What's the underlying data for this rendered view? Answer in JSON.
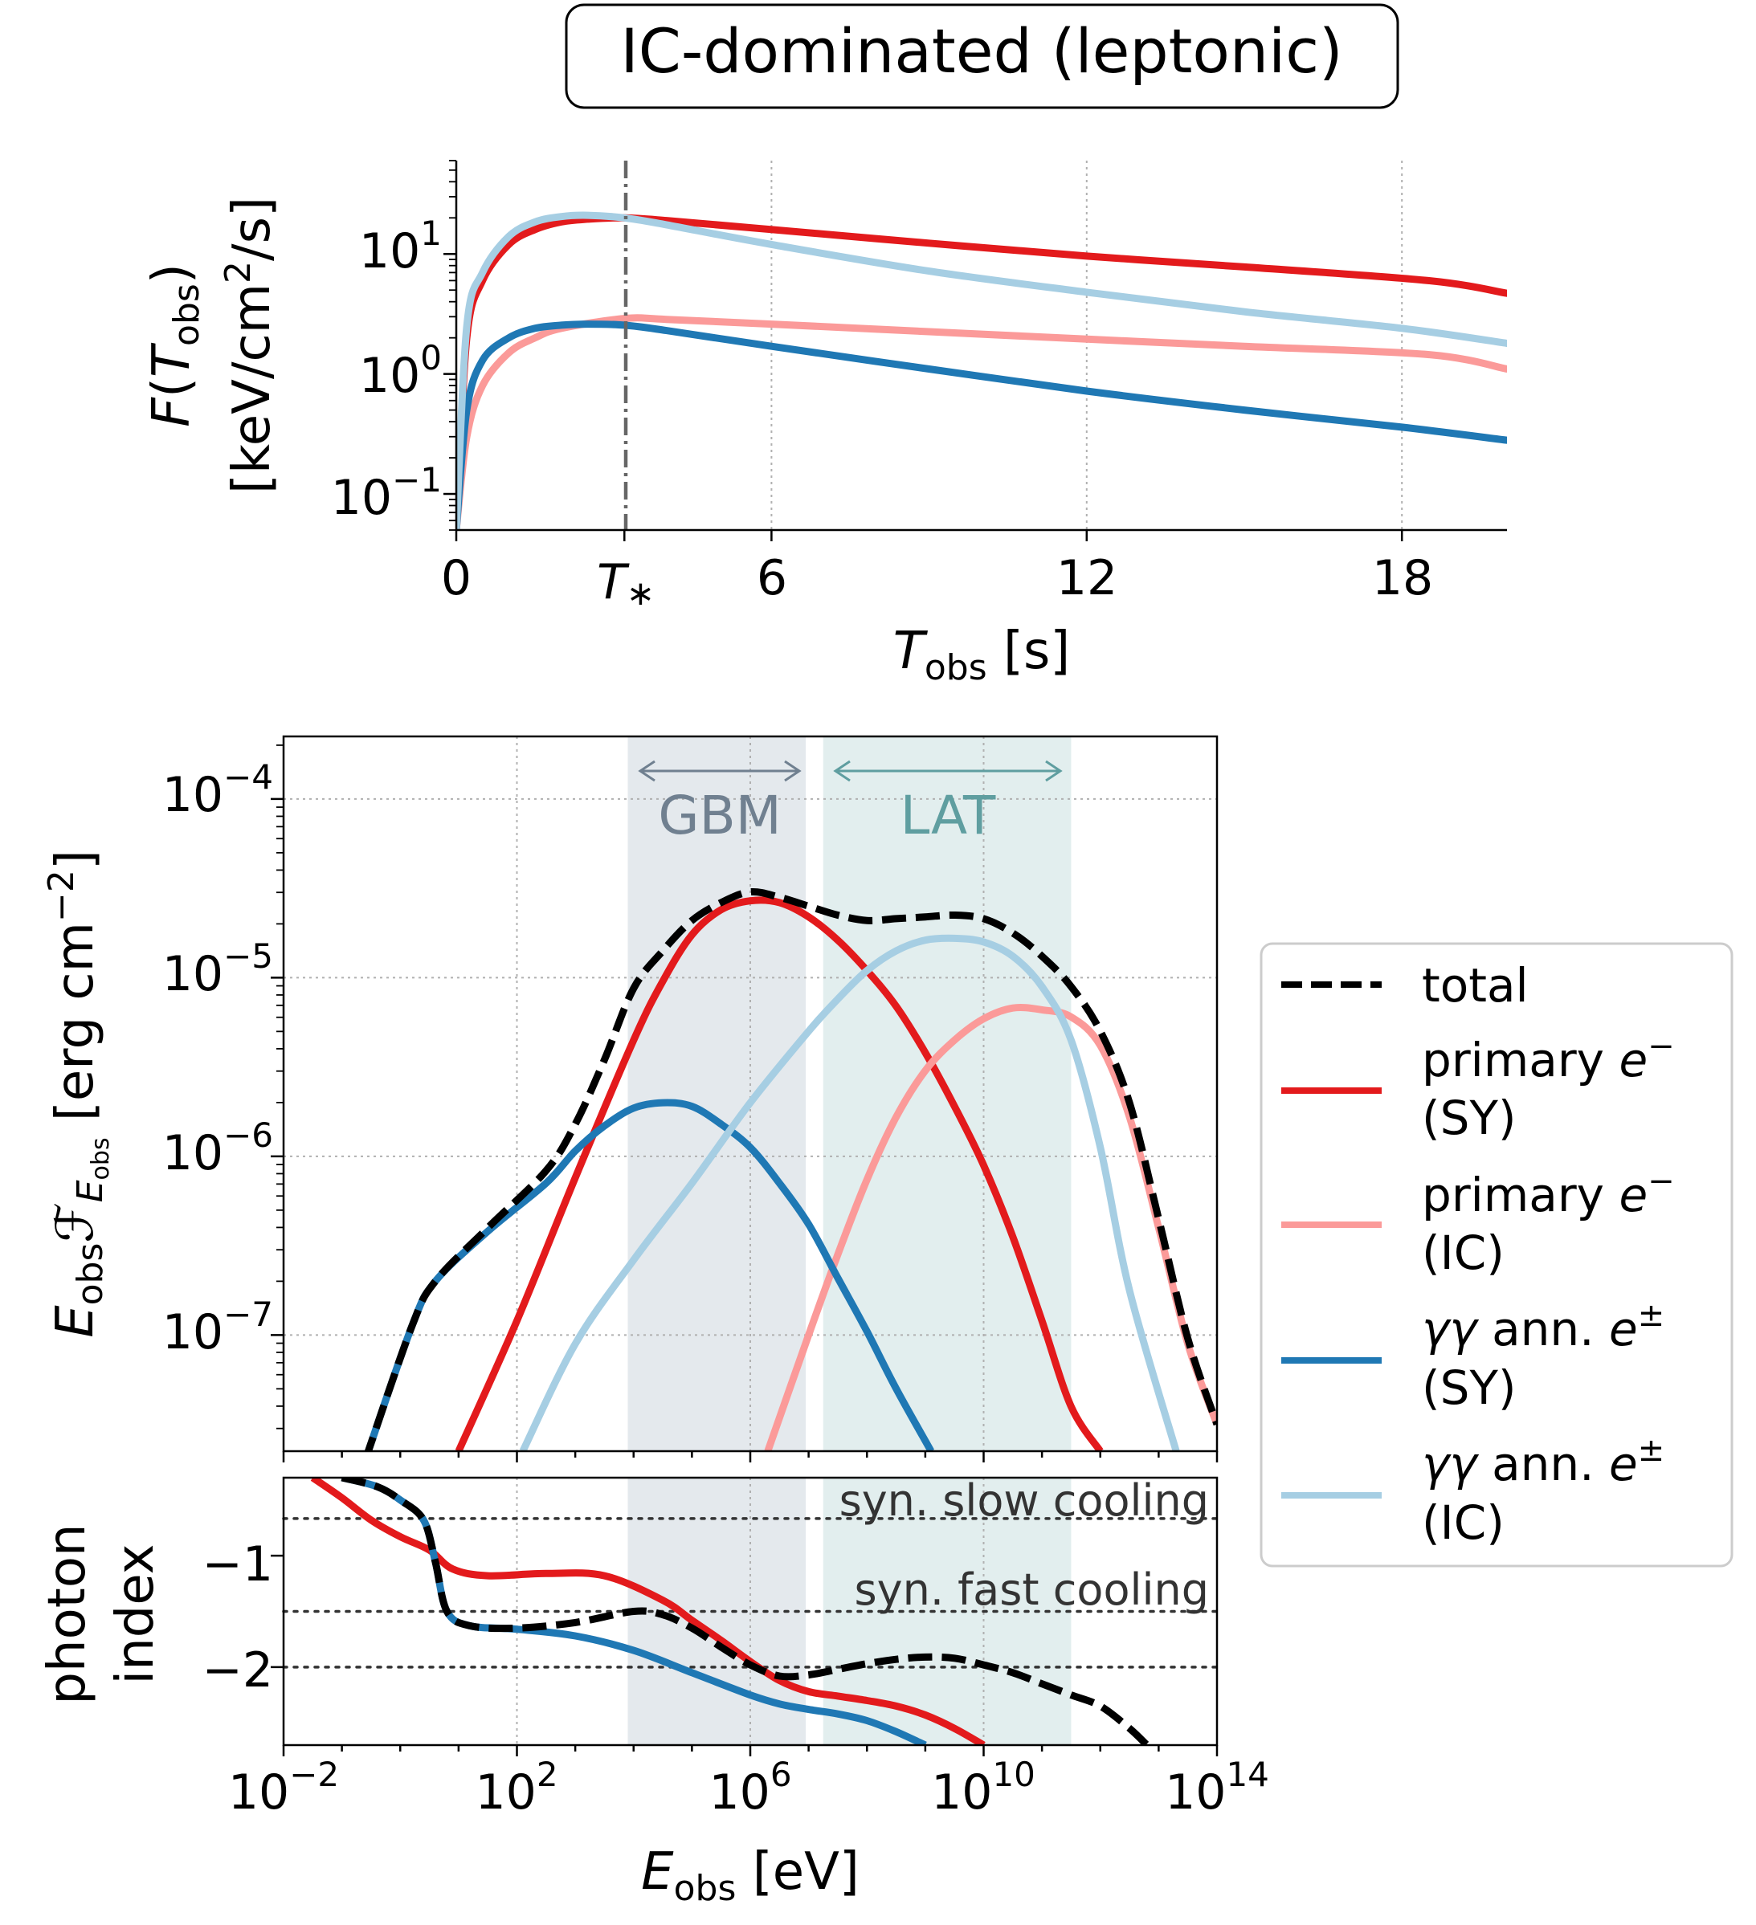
{
  "title": "IC-dominated (leptonic)",
  "colors": {
    "primary_sy": "#e31a1c",
    "primary_ic": "#fb9a99",
    "pair_sy": "#1f78b4",
    "pair_ic": "#a6cee3",
    "total": "#000000",
    "gbm_band": "#d8e0e6",
    "lat_band": "#d5e7e7",
    "gbm_text": "#708090",
    "lat_text": "#5f9ea0"
  },
  "top_panel": {
    "ylabel_line1": "F(T_obs)",
    "ylabel_line2": "[keV/cm²/s]",
    "xlabel": "T_obs [s]",
    "x_tick_labels": [
      "0",
      "T*",
      "6",
      "12",
      "18"
    ],
    "y_tick_labels": [
      "10^1",
      "10^0",
      "10^-1"
    ],
    "t_star": 3.2
  },
  "spectrum_panel": {
    "ylabel": "E_obs F_E_obs [erg cm^-2]",
    "y_tick_labels": [
      "10^-4",
      "10^-5",
      "10^-6",
      "10^-7"
    ],
    "band_labels": {
      "gbm": "GBM",
      "lat": "LAT"
    }
  },
  "index_panel": {
    "ylabel_line1": "photon",
    "ylabel_line2": "index",
    "y_tick_labels": [
      "-1",
      "-2"
    ],
    "reference_labels": {
      "slow": "syn. slow cooling",
      "fast": "syn. fast cooling"
    },
    "xlabel": "E_obs [eV]",
    "x_tick_labels": [
      "10^-2",
      "10^2",
      "10^6",
      "10^10",
      "10^14"
    ]
  },
  "legend": {
    "entries": [
      {
        "key": "total",
        "line1": "total",
        "line2": ""
      },
      {
        "key": "primary_sy",
        "line1": "primary e⁻",
        "line2": "(SY)"
      },
      {
        "key": "primary_ic",
        "line1": "primary e⁻",
        "line2": "(IC)"
      },
      {
        "key": "pair_sy",
        "line1": "γγ ann. e±",
        "line2": "(SY)"
      },
      {
        "key": "pair_ic",
        "line1": "γγ ann. e±",
        "line2": "(IC)"
      }
    ]
  },
  "chart_data": [
    {
      "type": "line",
      "xlabel": "T_obs [s]",
      "ylabel": "F(T_obs) [keV/cm²/s]",
      "xlim": [
        0,
        20
      ],
      "ylim": [
        0.05,
        60
      ],
      "yscale": "log",
      "grid": "x dotted",
      "x_ticks": [
        0,
        3.2,
        6,
        12,
        18
      ],
      "vline": {
        "x": 3.2,
        "style": "dash-dot"
      },
      "series": [
        {
          "key": "primary_sy",
          "x": [
            0,
            0.2,
            0.5,
            1,
            1.5,
            2,
            2.5,
            3.2,
            4,
            6,
            9,
            12,
            15,
            18.5,
            20
          ],
          "y": [
            0.05,
            2,
            6,
            12,
            16,
            18.5,
            19.5,
            20,
            19,
            16,
            12.3,
            9.6,
            7.8,
            6,
            4.7
          ]
        },
        {
          "key": "primary_ic",
          "x": [
            0,
            0.2,
            0.5,
            1,
            1.5,
            2,
            3.2,
            4,
            6,
            9,
            12,
            15,
            18.5,
            20
          ],
          "y": [
            0.05,
            0.3,
            0.8,
            1.5,
            2,
            2.4,
            2.9,
            2.85,
            2.6,
            2.25,
            1.95,
            1.7,
            1.45,
            1.1
          ]
        },
        {
          "key": "pair_sy",
          "x": [
            0,
            0.2,
            0.5,
            1,
            1.5,
            2,
            2.5,
            3.2,
            4,
            6,
            9,
            12,
            15,
            18,
            20
          ],
          "y": [
            0.05,
            0.5,
            1.3,
            2,
            2.4,
            2.55,
            2.6,
            2.55,
            2.3,
            1.7,
            1.1,
            0.72,
            0.5,
            0.36,
            0.28
          ]
        },
        {
          "key": "pair_ic",
          "x": [
            0,
            0.2,
            0.5,
            1,
            1.5,
            2,
            2.5,
            3.2,
            4,
            6,
            9,
            12,
            15,
            18,
            20
          ],
          "y": [
            0.05,
            2.5,
            7,
            14,
            18.5,
            20.5,
            21,
            20,
            17.5,
            12,
            7.2,
            4.8,
            3.3,
            2.4,
            1.8
          ]
        }
      ]
    },
    {
      "type": "line",
      "xlabel": "E_obs [eV]",
      "ylabel": "E_obs F_E_obs [erg cm^-2]",
      "xscale": "log",
      "yscale": "log",
      "xlim_log10": [
        -2,
        14
      ],
      "ylim_log10": [
        -7.65,
        -3.65
      ],
      "grid": "dotted",
      "bands": [
        {
          "name": "GBM",
          "log10_range": [
            3.9,
            6.95
          ]
        },
        {
          "name": "LAT",
          "log10_range": [
            7.25,
            11.5
          ]
        }
      ],
      "series": [
        {
          "key": "total",
          "log10_x": [
            -0.6,
            0.2,
            0.6,
            1.5,
            2.5,
            3,
            3.5,
            4,
            4.5,
            5,
            5.5,
            6,
            6.5,
            7,
            7.5,
            8,
            8.5,
            9,
            9.5,
            10,
            10.5,
            11,
            11.5,
            12,
            12.5,
            13,
            13.5,
            14
          ],
          "log10_y": [
            -7.7,
            -6.95,
            -6.7,
            -6.4,
            -6.08,
            -5.82,
            -5.46,
            -5.06,
            -4.85,
            -4.68,
            -4.58,
            -4.52,
            -4.55,
            -4.6,
            -4.65,
            -4.68,
            -4.67,
            -4.66,
            -4.65,
            -4.67,
            -4.75,
            -4.88,
            -5.05,
            -5.3,
            -5.7,
            -6.35,
            -7.02,
            -7.5
          ]
        },
        {
          "key": "primary_sy",
          "log10_x": [
            1.0,
            2,
            3,
            4,
            4.5,
            5,
            5.5,
            6,
            6.5,
            7,
            7.5,
            8,
            8.5,
            9,
            9.5,
            10,
            10.5,
            11,
            11.5,
            12.0
          ],
          "log10_y": [
            -7.65,
            -6.92,
            -6.12,
            -5.35,
            -5.02,
            -4.76,
            -4.62,
            -4.57,
            -4.58,
            -4.66,
            -4.79,
            -4.96,
            -5.16,
            -5.42,
            -5.72,
            -6.05,
            -6.45,
            -6.92,
            -7.4,
            -7.65
          ]
        },
        {
          "key": "primary_ic",
          "log10_x": [
            6.3,
            7,
            7.5,
            8,
            8.5,
            9,
            9.5,
            10,
            10.5,
            11,
            11.5,
            12,
            12.5,
            13,
            13.5,
            14
          ],
          "log10_y": [
            -7.65,
            -7.0,
            -6.55,
            -6.13,
            -5.78,
            -5.52,
            -5.35,
            -5.23,
            -5.17,
            -5.18,
            -5.22,
            -5.38,
            -5.78,
            -6.4,
            -7.05,
            -7.5
          ]
        },
        {
          "key": "pair_sy",
          "log10_x": [
            -0.6,
            0.2,
            0.6,
            1.5,
            2.5,
            3,
            3.5,
            4,
            4.5,
            5,
            5.5,
            6,
            6.5,
            7,
            7.5,
            8,
            8.5,
            9.1
          ],
          "log10_y": [
            -7.7,
            -6.95,
            -6.7,
            -6.42,
            -6.15,
            -5.97,
            -5.83,
            -5.73,
            -5.7,
            -5.72,
            -5.82,
            -5.95,
            -6.15,
            -6.38,
            -6.68,
            -6.98,
            -7.3,
            -7.65
          ]
        },
        {
          "key": "pair_ic",
          "log10_x": [
            2.1,
            3,
            4,
            5,
            6,
            7,
            7.5,
            8,
            8.5,
            9,
            9.5,
            10,
            10.5,
            11,
            11.5,
            12,
            12.5,
            13.3
          ],
          "log10_y": [
            -7.65,
            -7.05,
            -6.58,
            -6.15,
            -5.7,
            -5.3,
            -5.12,
            -4.96,
            -4.85,
            -4.79,
            -4.78,
            -4.8,
            -4.88,
            -5.05,
            -5.35,
            -5.95,
            -6.75,
            -7.65
          ]
        }
      ]
    },
    {
      "type": "line",
      "xlabel": "E_obs [eV]",
      "ylabel": "photon index",
      "xscale": "log",
      "xlim_log10": [
        -2,
        14
      ],
      "ylim": [
        -2.7,
        -0.3
      ],
      "reference_lines": [
        {
          "label": "syn. slow cooling",
          "y": -0.667
        },
        {
          "label": "syn. fast cooling",
          "y": -1.5
        },
        {
          "label": "",
          "y": -2
        }
      ],
      "series": [
        {
          "key": "total",
          "log10_x": [
            -1.0,
            -0.4,
            0,
            0.4,
            0.6,
            0.8,
            1.2,
            2,
            3,
            4,
            4.5,
            5,
            5.5,
            6,
            6.5,
            7,
            7.5,
            8,
            8.5,
            9,
            9.5,
            10,
            10.5,
            11,
            11.5,
            12,
            12.5,
            12.8
          ],
          "y": [
            -0.3,
            -0.38,
            -0.5,
            -0.68,
            -1.05,
            -1.5,
            -1.63,
            -1.65,
            -1.6,
            -1.5,
            -1.53,
            -1.65,
            -1.82,
            -1.98,
            -2.08,
            -2.07,
            -2.02,
            -1.97,
            -1.93,
            -1.91,
            -1.92,
            -1.98,
            -2.05,
            -2.15,
            -2.25,
            -2.35,
            -2.55,
            -2.7
          ]
        },
        {
          "key": "primary_sy",
          "log10_x": [
            -1.5,
            -1,
            -0.5,
            0,
            0.5,
            0.9,
            1.5,
            2.5,
            3.5,
            4.5,
            5,
            5.5,
            6,
            6.5,
            7,
            7.5,
            8,
            8.5,
            9,
            9.5,
            10.0
          ],
          "y": [
            -0.3,
            -0.48,
            -0.68,
            -0.83,
            -0.95,
            -1.12,
            -1.18,
            -1.16,
            -1.18,
            -1.4,
            -1.58,
            -1.76,
            -1.95,
            -2.12,
            -2.22,
            -2.26,
            -2.3,
            -2.35,
            -2.43,
            -2.55,
            -2.7
          ]
        },
        {
          "key": "pair_sy",
          "log10_x": [
            -1.0,
            -0.4,
            0,
            0.4,
            0.6,
            0.8,
            1.2,
            2,
            3,
            4,
            5,
            6,
            6.5,
            7,
            7.5,
            8,
            8.5,
            9.0
          ],
          "y": [
            -0.3,
            -0.38,
            -0.5,
            -0.68,
            -1.05,
            -1.5,
            -1.63,
            -1.66,
            -1.72,
            -1.85,
            -2.05,
            -2.25,
            -2.33,
            -2.38,
            -2.42,
            -2.48,
            -2.58,
            -2.7
          ]
        }
      ]
    }
  ]
}
